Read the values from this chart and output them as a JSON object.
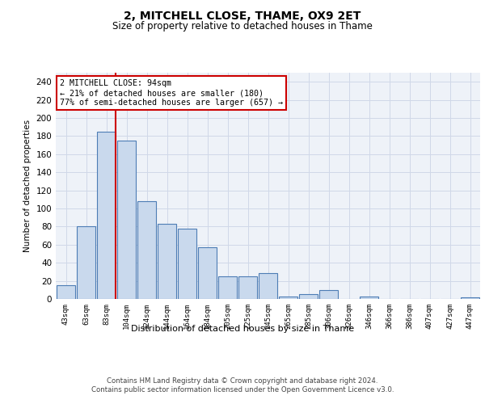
{
  "title": "2, MITCHELL CLOSE, THAME, OX9 2ET",
  "subtitle": "Size of property relative to detached houses in Thame",
  "xlabel": "Distribution of detached houses by size in Thame",
  "ylabel": "Number of detached properties",
  "bar_labels": [
    "43sqm",
    "63sqm",
    "83sqm",
    "104sqm",
    "124sqm",
    "144sqm",
    "164sqm",
    "184sqm",
    "205sqm",
    "225sqm",
    "245sqm",
    "265sqm",
    "285sqm",
    "306sqm",
    "326sqm",
    "346sqm",
    "366sqm",
    "386sqm",
    "407sqm",
    "427sqm",
    "447sqm"
  ],
  "bar_values": [
    15,
    80,
    185,
    175,
    108,
    83,
    78,
    57,
    25,
    25,
    29,
    3,
    5,
    10,
    0,
    3,
    0,
    0,
    0,
    0,
    2
  ],
  "bar_color": "#c9d9ed",
  "bar_edge_color": "#4d7db5",
  "vline_index": 2,
  "vline_color": "#cc0000",
  "annotation_text": "2 MITCHELL CLOSE: 94sqm\n← 21% of detached houses are smaller (180)\n77% of semi-detached houses are larger (657) →",
  "annotation_box_color": "#ffffff",
  "annotation_box_edge": "#cc0000",
  "ylim": [
    0,
    250
  ],
  "yticks": [
    0,
    20,
    40,
    60,
    80,
    100,
    120,
    140,
    160,
    180,
    200,
    220,
    240
  ],
  "grid_color": "#d0d8e8",
  "bg_color": "#eef2f8",
  "footer_text": "Contains HM Land Registry data © Crown copyright and database right 2024.\nContains public sector information licensed under the Open Government Licence v3.0."
}
